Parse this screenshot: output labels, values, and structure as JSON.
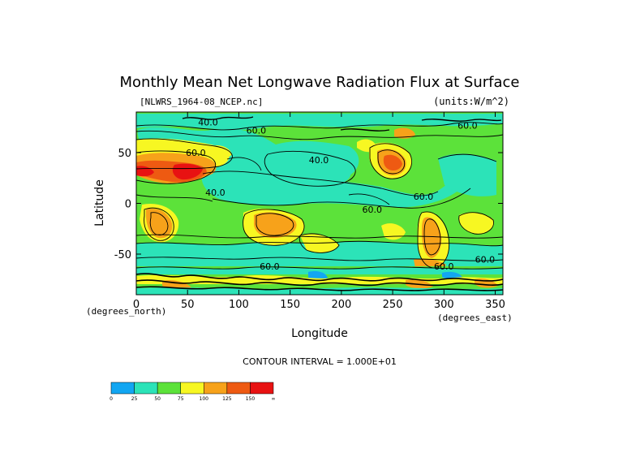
{
  "chart_data": {
    "type": "heatmap",
    "title": "Monthly Mean Net Longwave Radiation Flux at Surface",
    "file_label": "[NLWRS_1964-08_NCEP.nc]",
    "units_label": "(units:W/m^2)",
    "xlabel": "Longitude",
    "ylabel": "Latitude",
    "x_unit_note": "(degrees_east)",
    "y_unit_note": "(degrees_north)",
    "xlim": [
      0,
      357.5
    ],
    "ylim": [
      -90,
      90
    ],
    "x_ticks": [
      0,
      50,
      100,
      150,
      200,
      250,
      300,
      350
    ],
    "x_tick_labels": [
      "0",
      "50",
      "100",
      "150",
      "200",
      "250",
      "300",
      "350"
    ],
    "y_ticks": [
      50,
      0,
      -50
    ],
    "y_tick_labels": [
      "50",
      "0",
      "-50"
    ],
    "contour_interval_label": "CONTOUR INTERVAL = 1.000E+01",
    "contour_labels": [
      {
        "text": "40.0",
        "lon": 70,
        "lat": 80
      },
      {
        "text": "60.0",
        "lon": 117,
        "lat": 72
      },
      {
        "text": "60.0",
        "lon": 58,
        "lat": 50
      },
      {
        "text": "40.0",
        "lon": 77,
        "lat": 11
      },
      {
        "text": "40.0",
        "lon": 178,
        "lat": 43
      },
      {
        "text": "60.0",
        "lon": 230,
        "lat": -6
      },
      {
        "text": "60.0",
        "lon": 280,
        "lat": 7
      },
      {
        "text": "60.0",
        "lon": 323,
        "lat": 77
      },
      {
        "text": "60.0",
        "lon": 130,
        "lat": -62
      },
      {
        "text": "60.0",
        "lon": 300,
        "lat": -62
      },
      {
        "text": "60.0",
        "lon": 340,
        "lat": -55
      }
    ],
    "colorbar": {
      "levels": [
        "0",
        "25",
        "50",
        "75",
        "100",
        "125",
        "150",
        "∞"
      ],
      "colors": [
        "#12a6f2",
        "#2ce3b8",
        "#5ce23a",
        "#f7f722",
        "#f7a21a",
        "#ee5a12",
        "#e81212"
      ]
    }
  }
}
